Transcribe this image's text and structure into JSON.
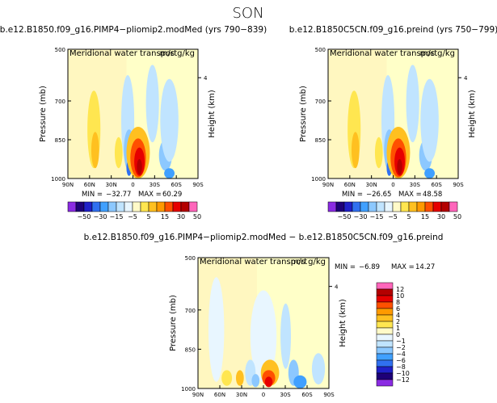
{
  "figure": {
    "title": "SON",
    "colors": {
      "background": "#ffffff",
      "field_background": "#ffffc8"
    }
  },
  "chart_data": [
    {
      "type": "heatmap",
      "title": "b.e12.B1850.f09_g16.PIMP4−pliomip2.modMed (yrs 790−839)",
      "subtitle": "Meridional water transport",
      "units": "m/s g/kg",
      "ylabel": "Pressure (mb)",
      "ylabel2": "Height (km)",
      "x_ticks": [
        "90N",
        "60N",
        "30N",
        "0",
        "30S",
        "60S",
        "90S"
      ],
      "y_ticks": [
        "500",
        "700",
        "850",
        "1000"
      ],
      "y2_ticks": [
        "4"
      ],
      "stats": {
        "min_label": "MIN =",
        "min": "−32.77",
        "max_label": "MAX =",
        "max": "60.29"
      }
    },
    {
      "type": "heatmap",
      "title": "b.e12.B1850C5CN.f09_g16.preind (yrs 750−799)",
      "subtitle": "Meridional water transport",
      "units": "m/s g/kg",
      "ylabel": "Pressure (mb)",
      "ylabel2": "Height (km)",
      "x_ticks": [
        "90N",
        "60N",
        "30N",
        "0",
        "30S",
        "60S",
        "90S"
      ],
      "y_ticks": [
        "500",
        "700",
        "850",
        "1000"
      ],
      "y2_ticks": [
        "4"
      ],
      "stats": {
        "min_label": "MIN =",
        "min": "−26.65",
        "max_label": "MAX =",
        "max": "48.58"
      }
    },
    {
      "type": "heatmap",
      "title": "b.e12.B1850.f09_g16.PIMP4−pliomip2.modMed − b.e12.B1850C5CN.f09_g16.preind",
      "subtitle": "Meridional water transport",
      "units": "m/s g/kg",
      "ylabel": "Pressure (mb)",
      "ylabel2": "Height (km)",
      "x_ticks": [
        "90N",
        "60N",
        "30N",
        "0",
        "30S",
        "60S",
        "90S"
      ],
      "y_ticks": [
        "500",
        "700",
        "850",
        "1000"
      ],
      "y2_ticks": [
        "4"
      ],
      "stats": {
        "min_label": "MIN =",
        "min": "−6.89",
        "max_label": "MAX =",
        "max": "14.27"
      }
    }
  ],
  "colorbars": {
    "top": {
      "labels": [
        "−50",
        "−30",
        "−15",
        "−5",
        "5",
        "15",
        "30",
        "50"
      ],
      "colors": [
        "#8a2be2",
        "#1e0078",
        "#2020c8",
        "#3070f0",
        "#40a0ff",
        "#8cc8ff",
        "#c0e4ff",
        "#e8f6ff",
        "#fffac8",
        "#ffe650",
        "#ffc020",
        "#ff9a00",
        "#ff5000",
        "#e60000",
        "#b40000",
        "#ff66bb"
      ]
    },
    "diff": {
      "labels": [
        "12",
        "10",
        "8",
        "6",
        "4",
        "2",
        "1",
        "0",
        "−1",
        "−2",
        "−4",
        "−6",
        "−8",
        "−10",
        "−12"
      ],
      "colors": [
        "#ff66bb",
        "#b40000",
        "#e60000",
        "#ff5000",
        "#ff9a00",
        "#ffc020",
        "#ffe650",
        "#fffac8",
        "#e8f6ff",
        "#c0e4ff",
        "#8cc8ff",
        "#40a0ff",
        "#3070f0",
        "#2020c8",
        "#1e0078",
        "#8a2be2"
      ]
    }
  }
}
